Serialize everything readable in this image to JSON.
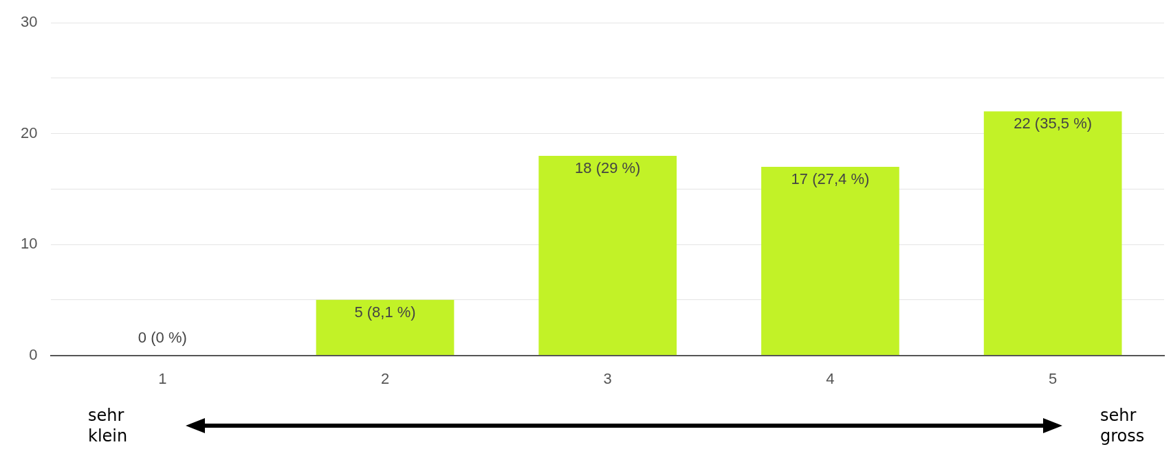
{
  "chart_data": {
    "type": "bar",
    "categories": [
      "1",
      "2",
      "3",
      "4",
      "5"
    ],
    "values": [
      0,
      5,
      18,
      17,
      22
    ],
    "color": "#c2f227",
    "value_labels": [
      "0 (0 %)",
      "5 (8,1 %)",
      "18 (29 %)",
      "17 (27,4 %)",
      "22 (35,5 %)"
    ],
    "ylim": [
      0,
      30
    ],
    "yticks": [
      0,
      {
        "value": 5,
        "label": null
      },
      10,
      {
        "value": 15,
        "label": null
      },
      20,
      {
        "value": 25,
        "label": null
      },
      30
    ],
    "grid": "y",
    "legend": false,
    "annotations": [
      "sehr klein",
      "sehr gross"
    ]
  }
}
